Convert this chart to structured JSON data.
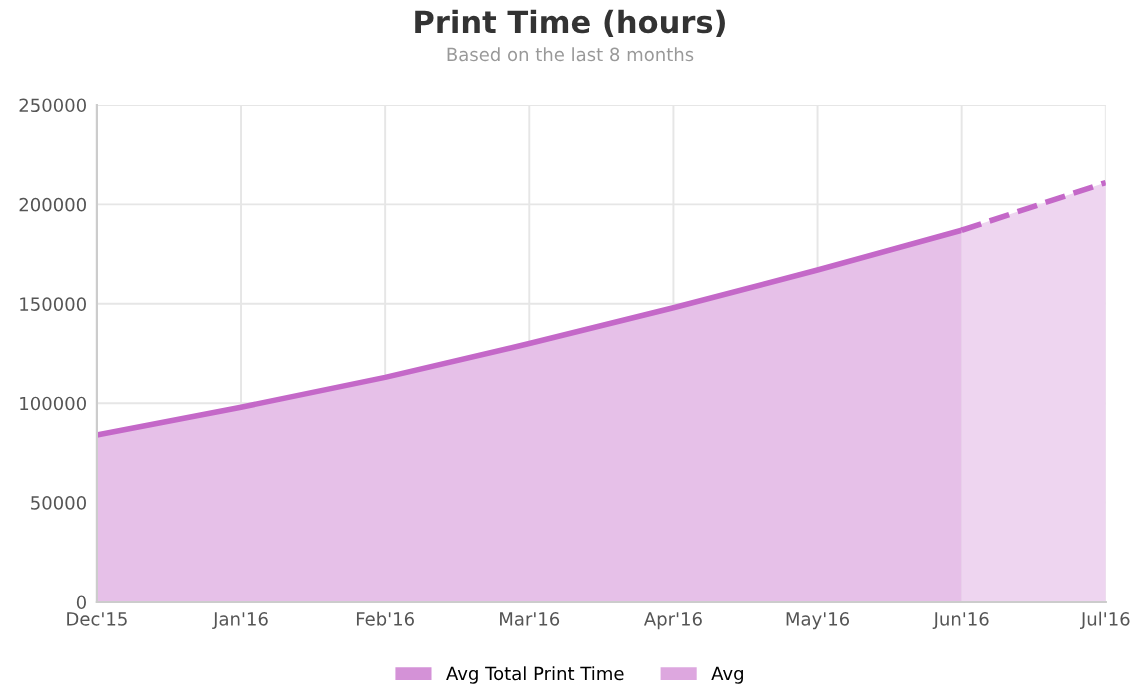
{
  "chart_data": {
    "type": "area",
    "title": "Print Time (hours)",
    "subtitle": "Based on the last 8 months",
    "categories": [
      "Dec'15",
      "Jan'16",
      "Feb'16",
      "Mar'16",
      "Apr'16",
      "May'16",
      "Jun'16",
      "Jul'16"
    ],
    "series": [
      {
        "name": "Avg Total Print Time",
        "color": "#c468c8",
        "line_style": "solid",
        "values": [
          84000,
          98000,
          113000,
          130000,
          148000,
          167000,
          187000,
          null
        ]
      },
      {
        "name": "Avg",
        "color": "#c468c8",
        "line_style": "dashed",
        "values": [
          null,
          null,
          null,
          null,
          null,
          null,
          187000,
          211000
        ]
      }
    ],
    "ylim": [
      0,
      250000
    ],
    "yticks": [
      0,
      50000,
      100000,
      150000,
      200000,
      250000
    ],
    "grid": true,
    "legend": "bottom"
  }
}
